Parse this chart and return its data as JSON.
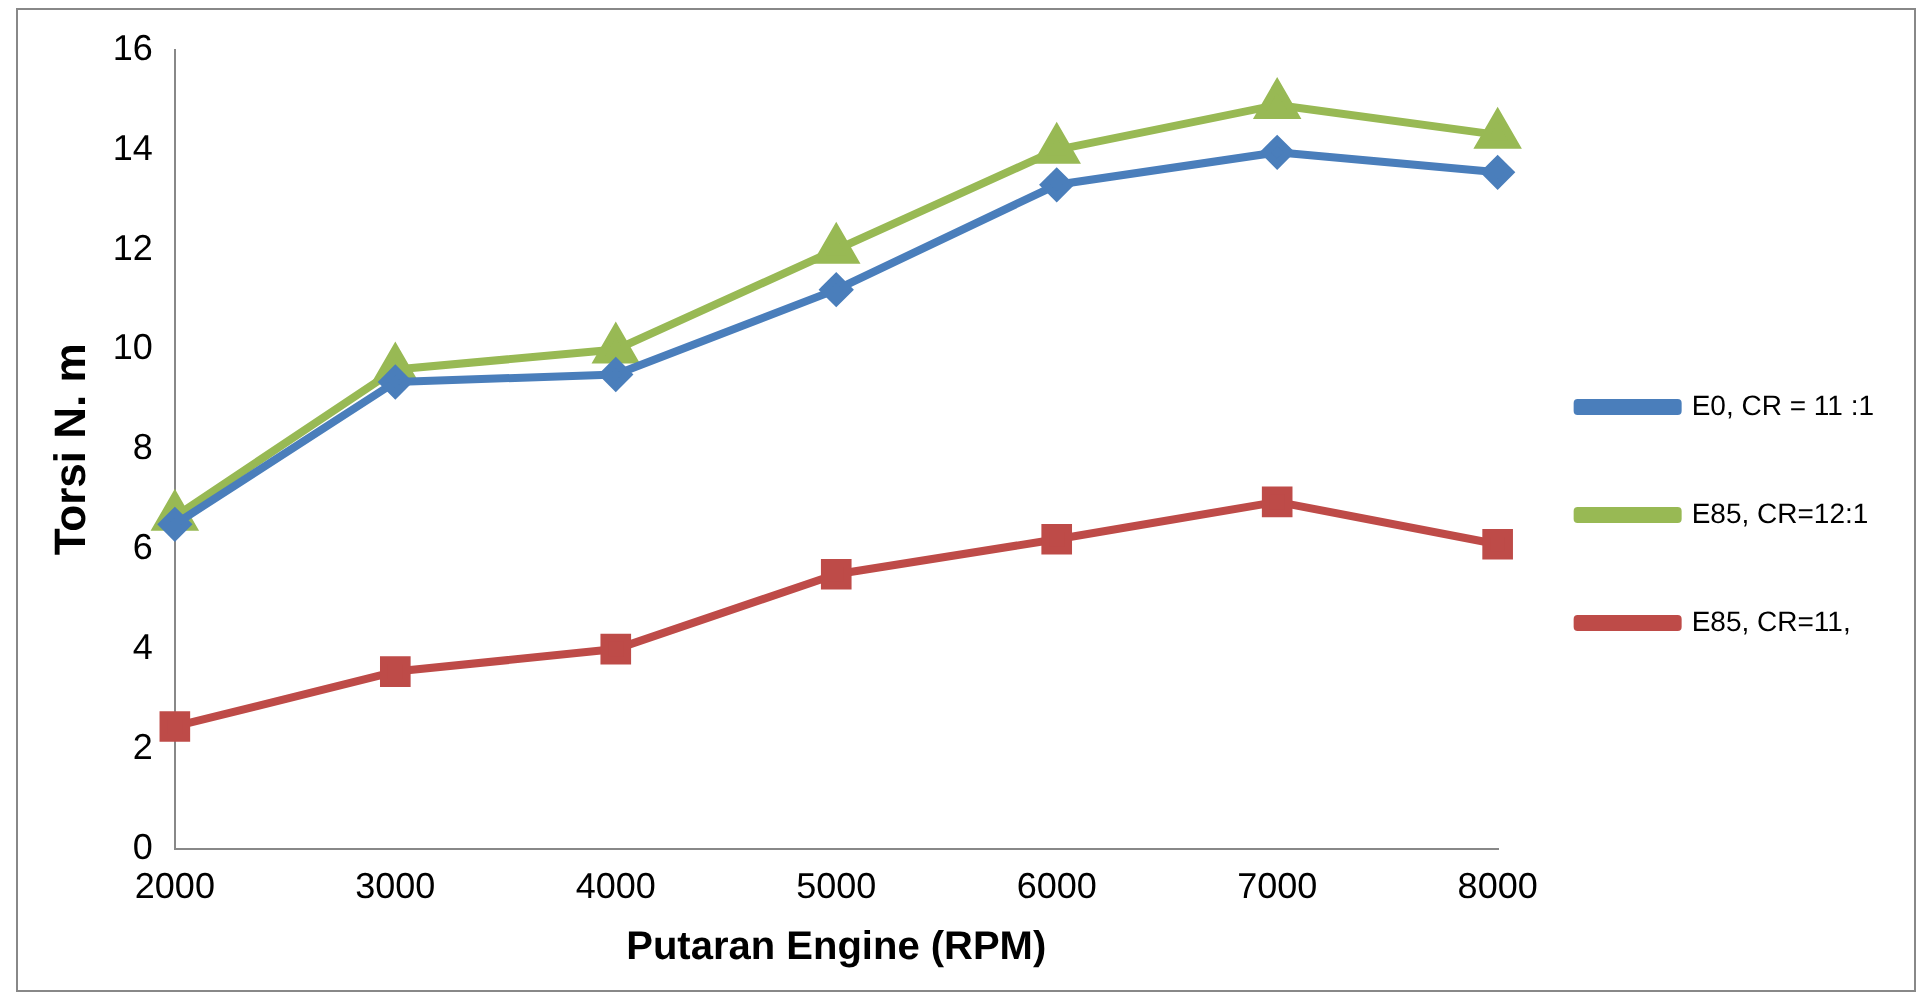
{
  "chart_data": {
    "type": "line",
    "xlabel": "Putaran Engine (RPM)",
    "ylabel": "Torsi N. m",
    "x": [
      2000,
      3000,
      4000,
      5000,
      6000,
      7000,
      8000
    ],
    "xlim": [
      2000,
      8000
    ],
    "xticks": [
      2000,
      3000,
      4000,
      5000,
      6000,
      7000,
      8000
    ],
    "ylim": [
      0,
      16
    ],
    "yticks": [
      0,
      2,
      4,
      6,
      8,
      10,
      12,
      14,
      16
    ],
    "grid": false,
    "legend": "right",
    "line_style": "solid",
    "series": [
      {
        "name": "E0, CR = 11 :1",
        "color": "#4a7ebb",
        "marker": "diamond",
        "values": [
          6.5,
          9.35,
          9.5,
          11.2,
          13.3,
          13.95,
          13.55
        ]
      },
      {
        "name": "E85, CR=12:1",
        "color": "#98b954",
        "marker": "triangle",
        "values": [
          6.65,
          9.6,
          10.0,
          12.0,
          14.0,
          14.9,
          14.3
        ]
      },
      {
        "name": "E85, CR=11,",
        "color": "#be4b48",
        "marker": "square",
        "values": [
          2.45,
          3.55,
          4.0,
          5.5,
          6.2,
          6.95,
          6.1
        ]
      }
    ]
  }
}
